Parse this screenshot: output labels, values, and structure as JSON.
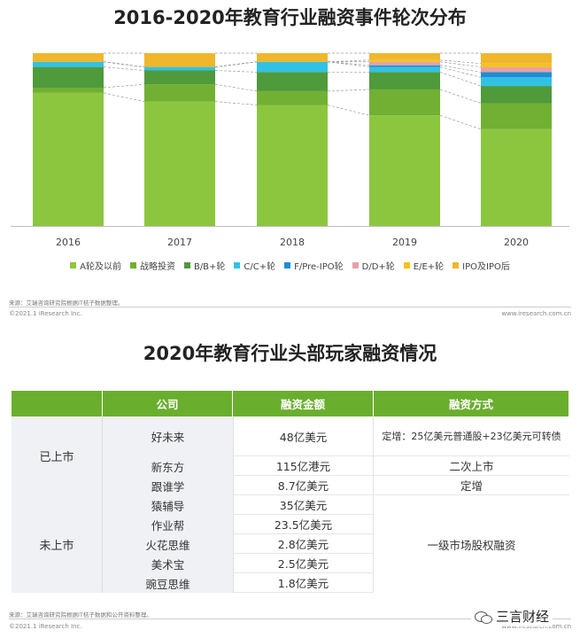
{
  "title_top": "2016-2020年教育行业融资事件轮次分布",
  "title_bottom": "2020年教育行业头部玩家融资情况",
  "chart_data": {
    "type": "bar",
    "stacked": true,
    "percent": true,
    "categories": [
      "2016",
      "2017",
      "2018",
      "2019",
      "2020"
    ],
    "series": [
      {
        "name": "A轮及以前",
        "color": "#8cc63f",
        "values": [
          77,
          72,
          70,
          64,
          56
        ]
      },
      {
        "name": "战略投资",
        "color": "#71b032",
        "values": [
          3,
          10,
          8,
          15,
          15
        ]
      },
      {
        "name": "B/B+轮",
        "color": "#4f9a3a",
        "values": [
          12,
          8,
          11,
          10,
          10
        ]
      },
      {
        "name": "C/C+轮",
        "color": "#33c1e3",
        "values": [
          3,
          2,
          6,
          3,
          5
        ]
      },
      {
        "name": "F/Pre-IPO轮",
        "color": "#1a8fd6",
        "values": [
          0,
          0,
          0,
          1,
          3
        ]
      },
      {
        "name": "D/D+轮",
        "color": "#e8a0a6",
        "values": [
          0,
          0,
          0,
          2,
          3
        ]
      },
      {
        "name": "E/E+轮",
        "color": "#f5c218",
        "values": [
          0,
          0,
          0,
          1,
          2
        ]
      },
      {
        "name": "IPO及IPO后",
        "color": "#f0b62c",
        "values": [
          5,
          8,
          5,
          4,
          6
        ]
      }
    ],
    "ylim": [
      0,
      100
    ],
    "legend_position": "bottom"
  },
  "source_top": "来源：艾瑞咨询研究院根据IT桔子数据整理。",
  "footer_left": "©2021.1 iResearch Inc.",
  "footer_right": "www.iresearch.com.cn",
  "table": {
    "headers": [
      "公司",
      "融资金额",
      "融资方式"
    ],
    "group_listed": "已上市",
    "group_unlisted": "未上市",
    "listed": [
      {
        "company": "好未来",
        "amount": "48亿美元",
        "method": "定增：25亿美元普通股+23亿美元可转债"
      },
      {
        "company": "新东方",
        "amount": "115亿港元",
        "method": "二次上市"
      },
      {
        "company": "跟谁学",
        "amount": "8.7亿美元",
        "method": "定增"
      }
    ],
    "unlisted": [
      {
        "company": "猿辅导",
        "amount": "35亿美元"
      },
      {
        "company": "作业帮",
        "amount": "23.5亿美元"
      },
      {
        "company": "火花思维",
        "amount": "2.8亿美元"
      },
      {
        "company": "美术宝",
        "amount": "2.5亿美元"
      },
      {
        "company": "豌豆思维",
        "amount": "1.8亿美元"
      }
    ],
    "unlisted_method": "一级市场股权融资"
  },
  "source_bottom": "来源：艾瑞咨询研究院根据IT桔子数据和公开资料整理。",
  "watermark": "三言财经"
}
